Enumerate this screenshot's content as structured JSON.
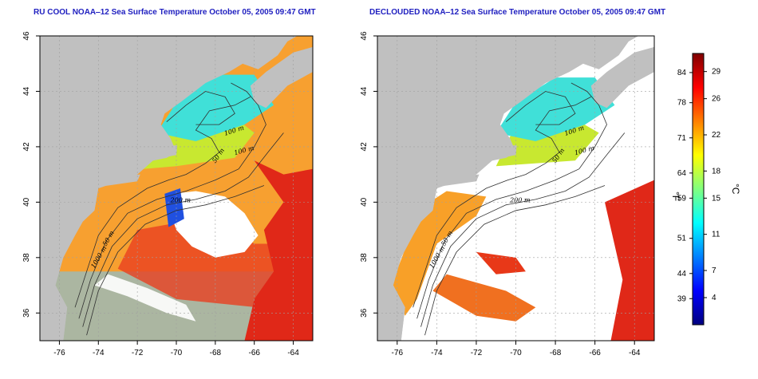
{
  "panels": [
    {
      "id": "left",
      "title": "RU COOL NOAA‒12 Sea Surface Temperature October 05, 2005 09:47 GMT",
      "variant": "cool"
    },
    {
      "id": "right",
      "title": "DECLOUDED NOAA‒12 Sea Surface Temperature October 05, 2005 09:47 GMT",
      "variant": "declouded"
    }
  ],
  "axes": {
    "x_ticks": [
      "-76",
      "-74",
      "-72",
      "-70",
      "-68",
      "-66",
      "-64"
    ],
    "x_values": [
      -76,
      -74,
      -72,
      -70,
      -68,
      -66,
      -64
    ],
    "y_ticks": [
      "36",
      "38",
      "40",
      "42",
      "44",
      "46"
    ],
    "y_values": [
      36,
      38,
      40,
      42,
      44,
      46
    ],
    "lon_range": [
      -77,
      -63
    ],
    "lat_range": [
      35,
      46
    ]
  },
  "isobath_labels": {
    "left": [
      "100 m",
      "100 m",
      "50 m",
      "200 m",
      "50 m",
      "1000 m"
    ],
    "right": [
      "100 m",
      "100 m",
      "50 m",
      "200 m",
      "50 m",
      "1000 m"
    ]
  },
  "colorbar": {
    "unit_left": "°F",
    "unit_right": "°C",
    "fahrenheit_ticks": [
      "84",
      "78",
      "71",
      "64",
      "59",
      "51",
      "44",
      "39"
    ],
    "fahrenheit_values": [
      84,
      78,
      71,
      64,
      59,
      51,
      44,
      39
    ],
    "celsius_ticks": [
      "29",
      "26",
      "22",
      "18",
      "15",
      "11",
      "7",
      "4"
    ],
    "celsius_values": [
      29,
      26,
      22,
      18,
      15,
      11,
      7,
      4
    ],
    "range_c": [
      1,
      31
    ],
    "colors": [
      "#00007f",
      "#0000ff",
      "#0080ff",
      "#00ffff",
      "#80ff80",
      "#ffff00",
      "#ff8000",
      "#ff0000",
      "#7f0000"
    ]
  },
  "colors": {
    "land": "#c0c0c0",
    "cloud": "#ffffff",
    "title": "#2020c0",
    "grid": "#a0a0a0"
  }
}
